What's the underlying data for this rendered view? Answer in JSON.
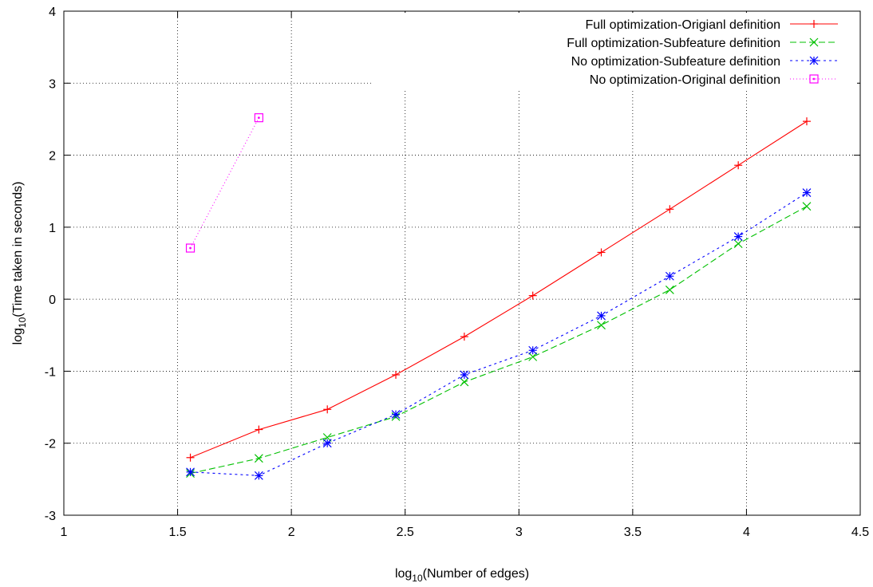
{
  "chart_data": {
    "type": "line",
    "title": "",
    "xlabel": {
      "prefix": "log",
      "sub": "10",
      "suffix": "(Number of edges)"
    },
    "ylabel": {
      "prefix": "log",
      "sub": "10",
      "suffix": "(Time taken in seconds)"
    },
    "xlim": [
      1,
      4.5
    ],
    "ylim": [
      -3,
      4
    ],
    "xticks": [
      1,
      1.5,
      2,
      2.5,
      3,
      3.5,
      4,
      4.5
    ],
    "xtick_labels": [
      "1",
      "1.5",
      "2",
      "2.5",
      "3",
      "3.5",
      "4",
      "4.5"
    ],
    "yticks": [
      -3,
      -2,
      -1,
      0,
      1,
      2,
      3,
      4
    ],
    "ytick_labels": [
      "-3",
      "-2",
      "-1",
      "0",
      "1",
      "2",
      "3",
      "4"
    ],
    "grid": true,
    "legend_position": "top-right",
    "series": [
      {
        "name": "Full optimization-Origianl definition",
        "color": "#ff0000",
        "marker": "plus",
        "dash": "",
        "x": [
          1.556,
          1.857,
          2.158,
          2.459,
          2.76,
          3.061,
          3.362,
          3.663,
          3.964,
          4.265
        ],
        "y": [
          -2.2,
          -1.81,
          -1.53,
          -1.05,
          -0.52,
          0.05,
          0.65,
          1.25,
          1.86,
          2.47
        ]
      },
      {
        "name": "Full optimization-Subfeature definition",
        "color": "#00c000",
        "marker": "x",
        "dash": "8 4",
        "x": [
          1.556,
          1.857,
          2.158,
          2.459,
          2.76,
          3.061,
          3.362,
          3.663,
          3.964,
          4.265
        ],
        "y": [
          -2.42,
          -2.21,
          -1.92,
          -1.63,
          -1.15,
          -0.8,
          -0.36,
          0.13,
          0.77,
          1.29
        ]
      },
      {
        "name": "No optimization-Subfeature definition",
        "color": "#0000ff",
        "marker": "star",
        "dash": "3 4",
        "x": [
          1.556,
          1.857,
          2.158,
          2.459,
          2.76,
          3.061,
          3.362,
          3.663,
          3.964,
          4.265
        ],
        "y": [
          -2.4,
          -2.45,
          -2.0,
          -1.6,
          -1.05,
          -0.71,
          -0.23,
          0.32,
          0.87,
          1.48
        ]
      },
      {
        "name": "No optimization-Original definition",
        "color": "#ff00ff",
        "marker": "square",
        "dash": "1 3",
        "x": [
          1.556,
          1.857
        ],
        "y": [
          0.71,
          2.52
        ]
      }
    ]
  }
}
